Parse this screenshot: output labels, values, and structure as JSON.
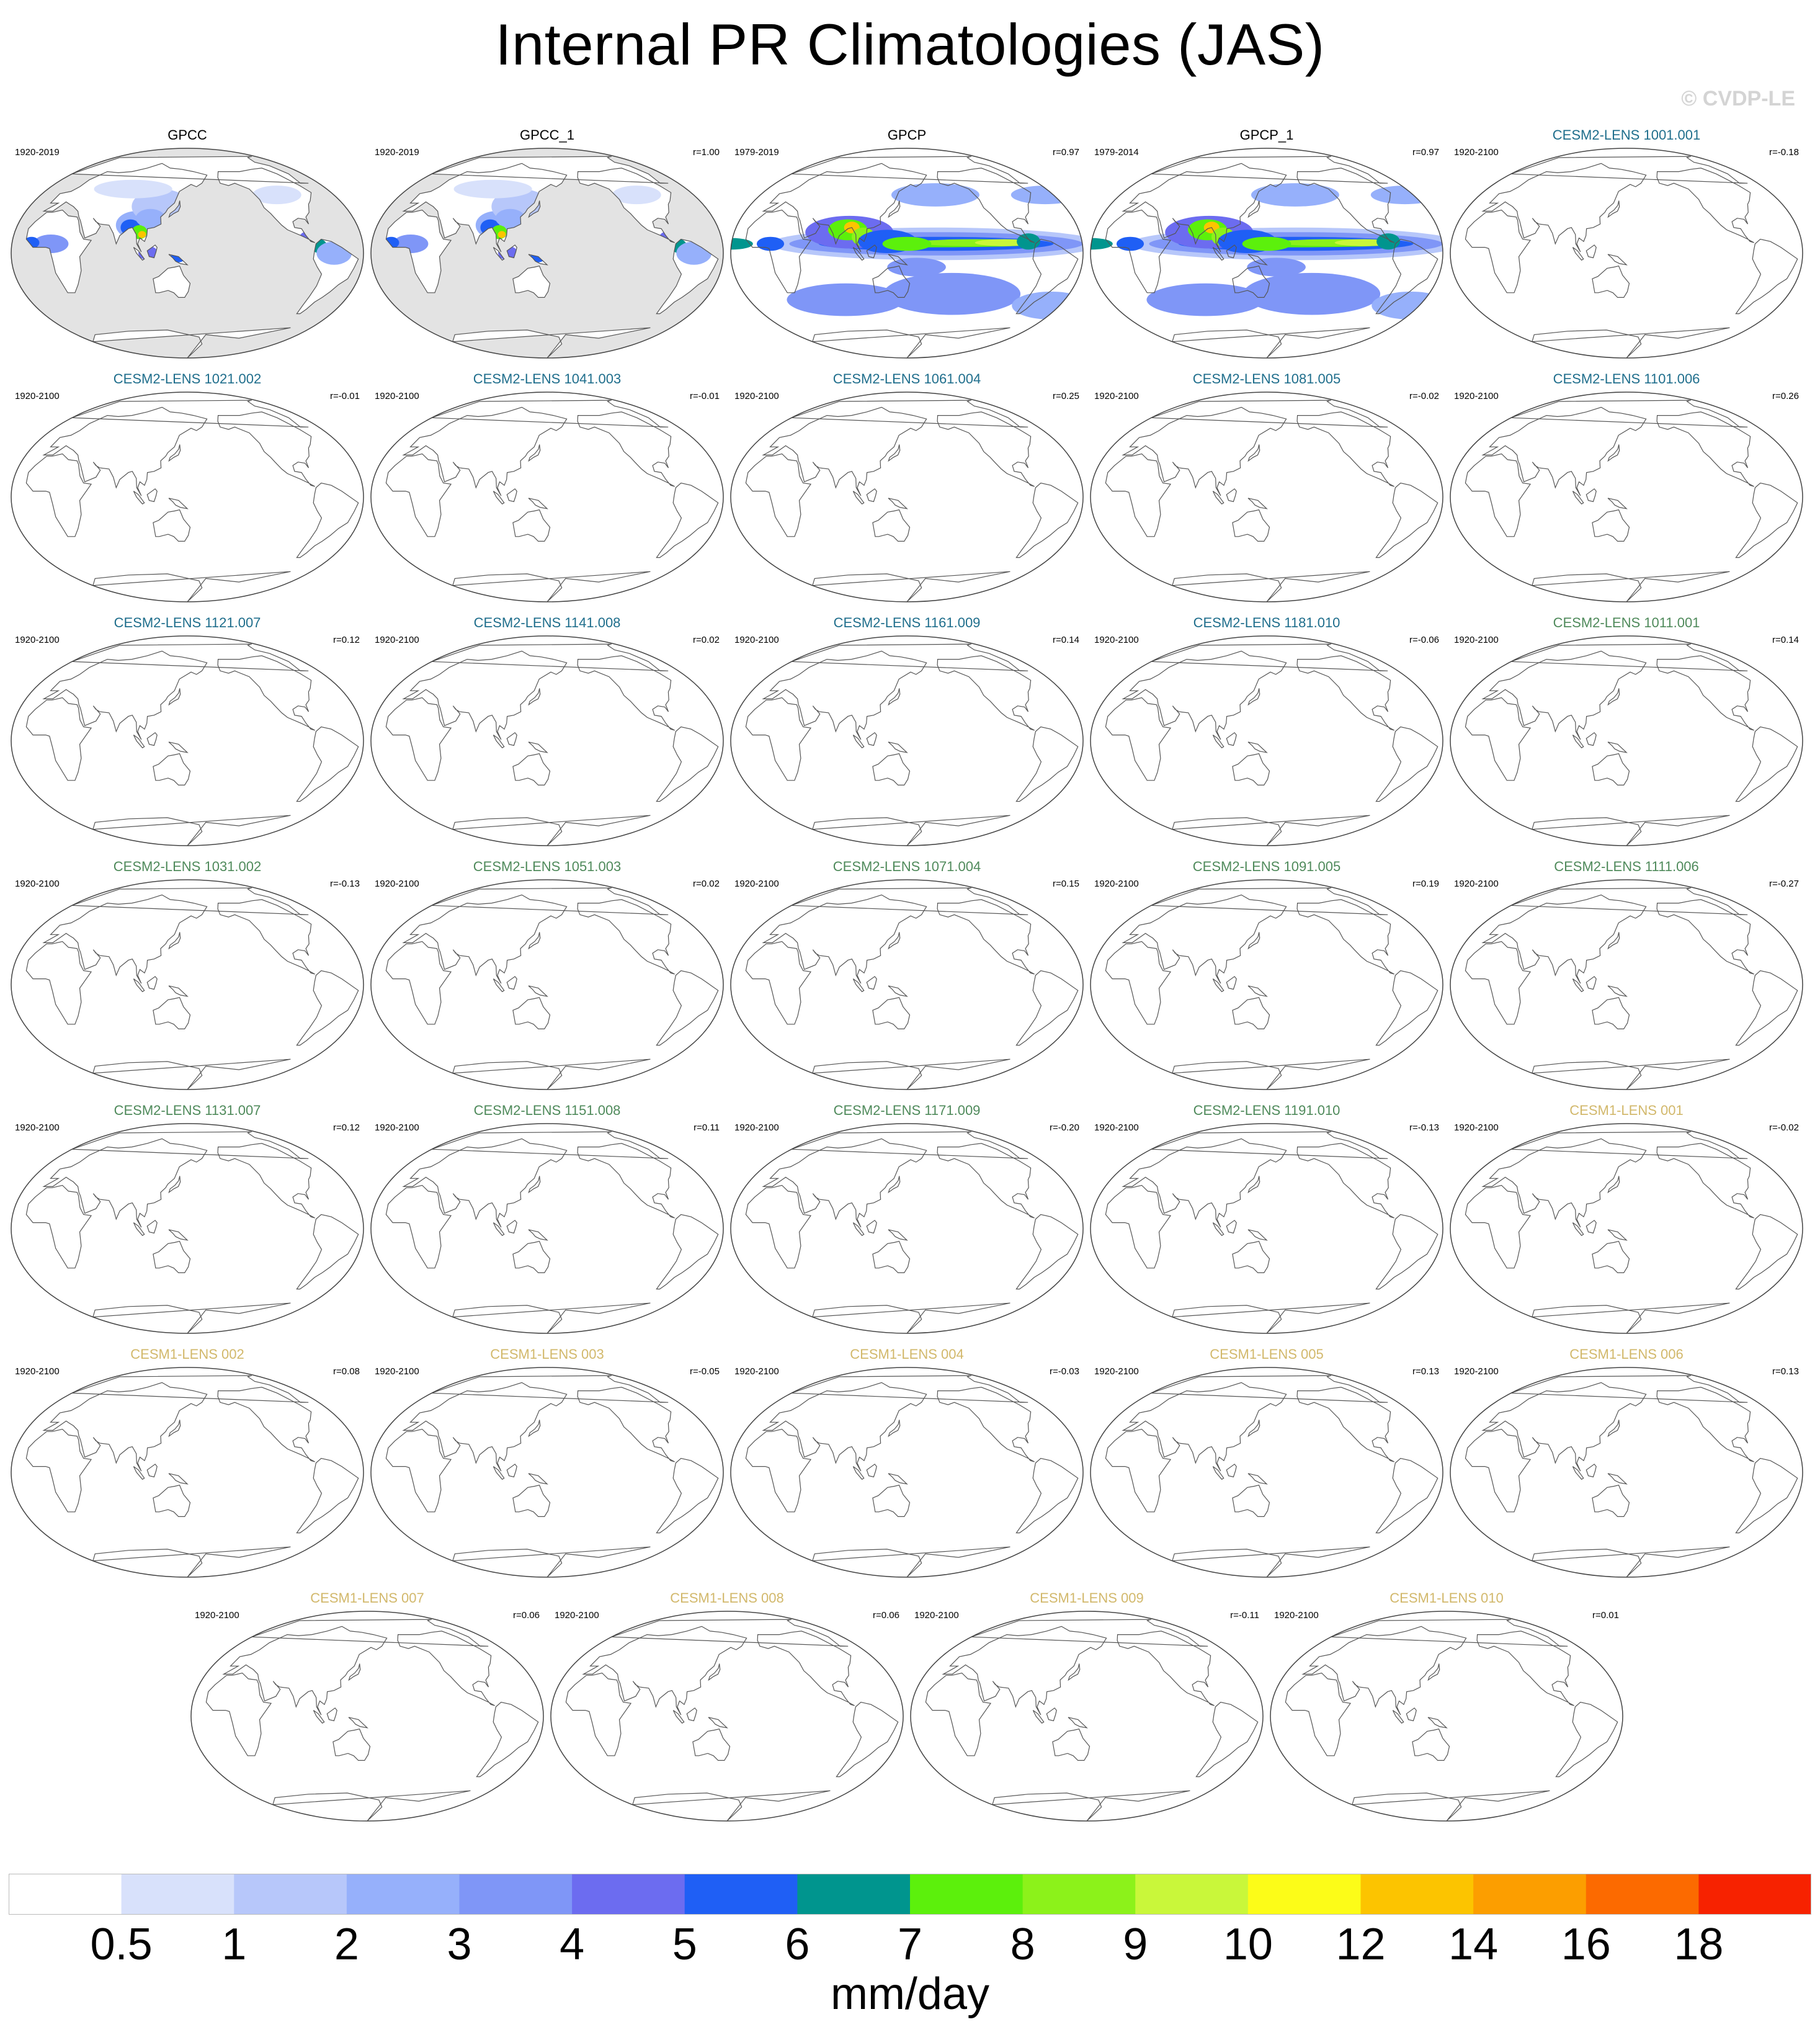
{
  "title": "Internal PR Climatologies (JAS)",
  "watermark": "© CVDP-LE",
  "chart_data": {
    "type": "map-panels",
    "colors": {
      "obs_title": "#000000",
      "cesm2_macro": "#1f6e8c",
      "cesm2_smbb": "#4f8a5b",
      "cesm1": "#d2b86b",
      "coast": "#555555",
      "land_mask": "#e3e3e3"
    },
    "colorbar": {
      "ticks": [
        "0.5",
        "1",
        "2",
        "3",
        "4",
        "5",
        "6",
        "7",
        "8",
        "9",
        "10",
        "12",
        "14",
        "16",
        "18"
      ],
      "colors": [
        "#ffffff",
        "#d8e1fb",
        "#b7c7fa",
        "#96b0fb",
        "#7f96f7",
        "#6c6cf0",
        "#1f5ff5",
        "#00958e",
        "#5cf00c",
        "#8cf21a",
        "#c9f73a",
        "#fcfc18",
        "#fcc400",
        "#fc9e00",
        "#fc6a00",
        "#f72200"
      ],
      "units": "mm/day"
    },
    "panels": [
      {
        "title": "GPCC",
        "years": "1920-2019",
        "r": "",
        "group": "obs",
        "field": "obs-land"
      },
      {
        "title": "GPCC_1",
        "years": "1920-2019",
        "r": "r=1.00",
        "group": "obs",
        "field": "obs-land"
      },
      {
        "title": "GPCP",
        "years": "1979-2019",
        "r": "r=0.97",
        "group": "obs",
        "field": "obs-global"
      },
      {
        "title": "GPCP_1",
        "years": "1979-2014",
        "r": "r=0.97",
        "group": "obs",
        "field": "obs-global"
      },
      {
        "title": "CESM2-LENS 1001.001",
        "years": "1920-2100",
        "r": "r=-0.18",
        "group": "cesm2_macro",
        "field": "none"
      },
      {
        "title": "CESM2-LENS 1021.002",
        "years": "1920-2100",
        "r": "r=-0.01",
        "group": "cesm2_macro",
        "field": "none"
      },
      {
        "title": "CESM2-LENS 1041.003",
        "years": "1920-2100",
        "r": "r=-0.01",
        "group": "cesm2_macro",
        "field": "none"
      },
      {
        "title": "CESM2-LENS 1061.004",
        "years": "1920-2100",
        "r": "r=0.25",
        "group": "cesm2_macro",
        "field": "none"
      },
      {
        "title": "CESM2-LENS 1081.005",
        "years": "1920-2100",
        "r": "r=-0.02",
        "group": "cesm2_macro",
        "field": "none"
      },
      {
        "title": "CESM2-LENS 1101.006",
        "years": "1920-2100",
        "r": "r=0.26",
        "group": "cesm2_macro",
        "field": "none"
      },
      {
        "title": "CESM2-LENS 1121.007",
        "years": "1920-2100",
        "r": "r=0.12",
        "group": "cesm2_macro",
        "field": "none"
      },
      {
        "title": "CESM2-LENS 1141.008",
        "years": "1920-2100",
        "r": "r=0.02",
        "group": "cesm2_macro",
        "field": "none"
      },
      {
        "title": "CESM2-LENS 1161.009",
        "years": "1920-2100",
        "r": "r=0.14",
        "group": "cesm2_macro",
        "field": "none"
      },
      {
        "title": "CESM2-LENS 1181.010",
        "years": "1920-2100",
        "r": "r=-0.06",
        "group": "cesm2_macro",
        "field": "none"
      },
      {
        "title": "CESM2-LENS 1011.001",
        "years": "1920-2100",
        "r": "r=0.14",
        "group": "cesm2_smbb",
        "field": "none"
      },
      {
        "title": "CESM2-LENS 1031.002",
        "years": "1920-2100",
        "r": "r=-0.13",
        "group": "cesm2_smbb",
        "field": "none"
      },
      {
        "title": "CESM2-LENS 1051.003",
        "years": "1920-2100",
        "r": "r=0.02",
        "group": "cesm2_smbb",
        "field": "none"
      },
      {
        "title": "CESM2-LENS 1071.004",
        "years": "1920-2100",
        "r": "r=0.15",
        "group": "cesm2_smbb",
        "field": "none"
      },
      {
        "title": "CESM2-LENS 1091.005",
        "years": "1920-2100",
        "r": "r=0.19",
        "group": "cesm2_smbb",
        "field": "none"
      },
      {
        "title": "CESM2-LENS 1111.006",
        "years": "1920-2100",
        "r": "r=-0.27",
        "group": "cesm2_smbb",
        "field": "none"
      },
      {
        "title": "CESM2-LENS 1131.007",
        "years": "1920-2100",
        "r": "r=0.12",
        "group": "cesm2_smbb",
        "field": "none"
      },
      {
        "title": "CESM2-LENS 1151.008",
        "years": "1920-2100",
        "r": "r=0.11",
        "group": "cesm2_smbb",
        "field": "none"
      },
      {
        "title": "CESM2-LENS 1171.009",
        "years": "1920-2100",
        "r": "r=-0.20",
        "group": "cesm2_smbb",
        "field": "none"
      },
      {
        "title": "CESM2-LENS 1191.010",
        "years": "1920-2100",
        "r": "r=-0.13",
        "group": "cesm2_smbb",
        "field": "none"
      },
      {
        "title": "CESM1-LENS 001",
        "years": "1920-2100",
        "r": "r=-0.02",
        "group": "cesm1",
        "field": "none"
      },
      {
        "title": "CESM1-LENS 002",
        "years": "1920-2100",
        "r": "r=0.08",
        "group": "cesm1",
        "field": "none"
      },
      {
        "title": "CESM1-LENS 003",
        "years": "1920-2100",
        "r": "r=-0.05",
        "group": "cesm1",
        "field": "none"
      },
      {
        "title": "CESM1-LENS 004",
        "years": "1920-2100",
        "r": "r=-0.03",
        "group": "cesm1",
        "field": "none"
      },
      {
        "title": "CESM1-LENS 005",
        "years": "1920-2100",
        "r": "r=0.13",
        "group": "cesm1",
        "field": "none"
      },
      {
        "title": "CESM1-LENS 006",
        "years": "1920-2100",
        "r": "r=0.13",
        "group": "cesm1",
        "field": "none"
      },
      {
        "title": "CESM1-LENS 007",
        "years": "1920-2100",
        "r": "r=0.06",
        "group": "cesm1",
        "field": "none"
      },
      {
        "title": "CESM1-LENS 008",
        "years": "1920-2100",
        "r": "r=0.06",
        "group": "cesm1",
        "field": "none"
      },
      {
        "title": "CESM1-LENS 009",
        "years": "1920-2100",
        "r": "r=-0.11",
        "group": "cesm1",
        "field": "none"
      },
      {
        "title": "CESM1-LENS 010",
        "years": "1920-2100",
        "r": "r=0.01",
        "group": "cesm1",
        "field": "none"
      }
    ]
  }
}
